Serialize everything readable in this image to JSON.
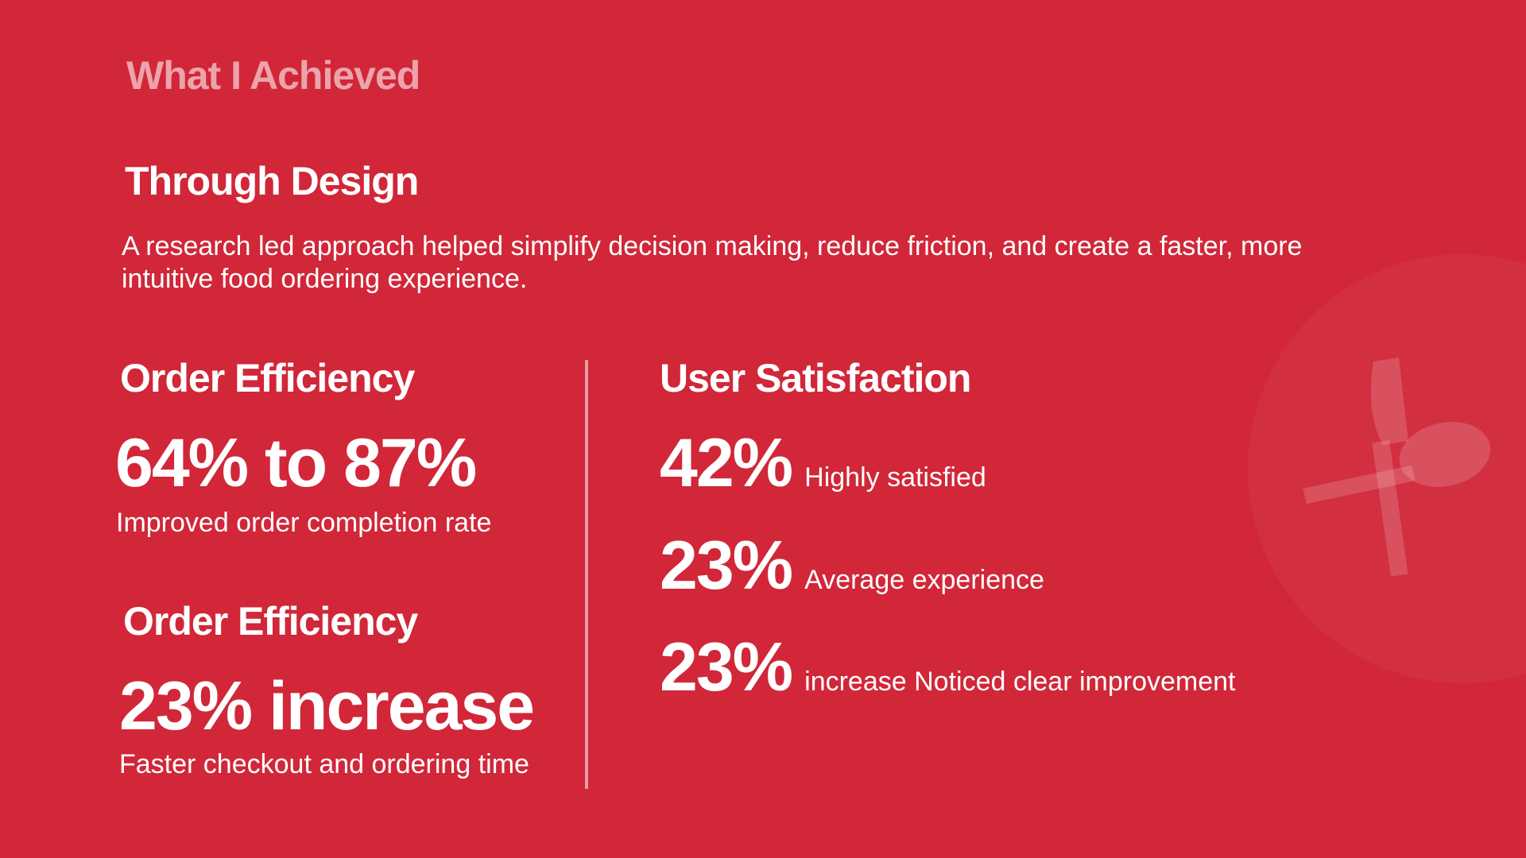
{
  "header": {
    "title": "What I Achieved"
  },
  "intro": {
    "title": "Through Design",
    "description": "A research led approach helped simplify decision making, reduce friction, and create a faster, more intuitive food ordering experience."
  },
  "left": {
    "blocks": [
      {
        "title": "Order Efficiency",
        "stat": "64% to 87%",
        "caption": "Improved order completion rate"
      },
      {
        "title": "Order Efficiency",
        "stat": "23% increase",
        "caption": "Faster checkout and ordering time"
      }
    ]
  },
  "right": {
    "title": "User Satisfaction",
    "items": [
      {
        "stat": "42%",
        "label": "Highly satisfied"
      },
      {
        "stat": "23%",
        "label": "Average experience"
      },
      {
        "stat": "23%",
        "label": "increase Noticed clear improvement"
      }
    ]
  }
}
